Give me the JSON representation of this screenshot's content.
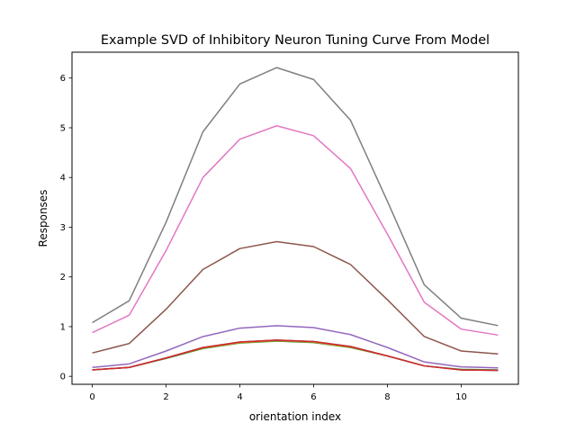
{
  "chart_data": {
    "type": "line",
    "title": "Example SVD of Inhibitory Neuron Tuning Curve From Model",
    "xlabel": "orientation index",
    "ylabel": "Responses",
    "xlim": [
      -0.55,
      11.55
    ],
    "ylim": [
      -0.16,
      6.52
    ],
    "xticks": [
      0,
      2,
      4,
      6,
      8,
      10
    ],
    "yticks": [
      0,
      1,
      2,
      3,
      4,
      5,
      6
    ],
    "grid": false,
    "legend": "none",
    "x": [
      0,
      1,
      2,
      3,
      4,
      5,
      6,
      7,
      8,
      9,
      10,
      11
    ],
    "series": [
      {
        "color": "#2ca02c",
        "values": [
          0.13,
          0.18,
          0.36,
          0.56,
          0.67,
          0.71,
          0.68,
          0.58,
          0.41,
          0.21,
          0.14,
          0.13
        ]
      },
      {
        "color": "#ff7f0e",
        "values": [
          0.13,
          0.18,
          0.37,
          0.57,
          0.68,
          0.72,
          0.69,
          0.59,
          0.41,
          0.21,
          0.13,
          0.12
        ]
      },
      {
        "color": "#1f77b4",
        "values": [
          0.13,
          0.18,
          0.37,
          0.58,
          0.69,
          0.73,
          0.7,
          0.6,
          0.41,
          0.21,
          0.13,
          0.12
        ]
      },
      {
        "color": "#d62728",
        "values": [
          0.13,
          0.18,
          0.37,
          0.58,
          0.69,
          0.73,
          0.7,
          0.6,
          0.41,
          0.21,
          0.13,
          0.12
        ]
      },
      {
        "color": "#9467bd",
        "values": [
          0.18,
          0.25,
          0.51,
          0.8,
          0.97,
          1.02,
          0.98,
          0.84,
          0.58,
          0.29,
          0.19,
          0.17
        ]
      },
      {
        "color": "#8c564b",
        "values": [
          0.47,
          0.66,
          1.35,
          2.15,
          2.57,
          2.71,
          2.61,
          2.25,
          1.54,
          0.8,
          0.51,
          0.45
        ]
      },
      {
        "color": "#e377c2",
        "values": [
          0.88,
          1.23,
          2.53,
          4.0,
          4.77,
          5.04,
          4.84,
          4.18,
          2.86,
          1.49,
          0.95,
          0.83
        ]
      },
      {
        "color": "#7f7f7f",
        "values": [
          1.08,
          1.52,
          3.1,
          4.92,
          5.88,
          6.21,
          5.97,
          5.15,
          3.52,
          1.84,
          1.17,
          1.02
        ]
      }
    ]
  }
}
